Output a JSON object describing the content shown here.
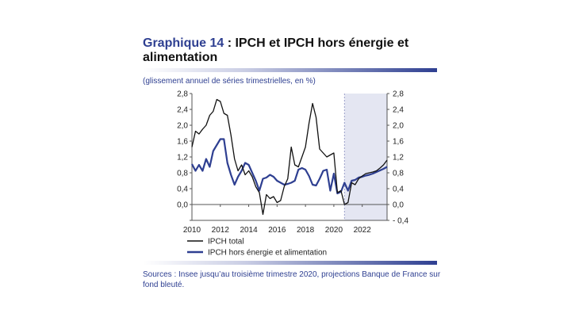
{
  "title": {
    "lead": "Graphique 14",
    "rest": " : IPCH et IPCH hors énergie et alimentation"
  },
  "subtitle": "(glissement annuel de séries trimestrielles, en %)",
  "sources": "Sources : Insee jusqu’au troisième trimestre 2020, projections Banque de France sur fond bleuté.",
  "colors": {
    "accent": "#2e3f91",
    "projection_band": "#e4e6f2",
    "total_line": "#111111"
  },
  "chart_data": {
    "type": "line",
    "xlim": [
      2010.0,
      2023.75
    ],
    "ylim": [
      -0.4,
      2.8
    ],
    "y_ticks": [
      -0.4,
      0.0,
      0.4,
      0.8,
      1.2,
      1.6,
      2.0,
      2.4,
      2.8
    ],
    "y_tick_labels": [
      "- 0,4",
      "0,0",
      "0,4",
      "0,8",
      "1,2",
      "1,6",
      "2,0",
      "2,4",
      "2,8"
    ],
    "y_tick_labels_left": [
      "",
      "0,0",
      "0,4",
      "0,8",
      "1,2",
      "1,6",
      "2,0",
      "2,4",
      "2,8"
    ],
    "x_ticks": [
      2010,
      2012,
      2014,
      2016,
      2018,
      2020,
      2022
    ],
    "x_tick_labels": [
      "2010",
      "2012",
      "2014",
      "2016",
      "2018",
      "2020",
      "2022"
    ],
    "projection_start": 2020.75,
    "legend_placement": "bottom-left",
    "series": [
      {
        "name": "IPCH total",
        "color": "#111111",
        "x": [
          2010.0,
          2010.25,
          2010.5,
          2010.75,
          2011.0,
          2011.25,
          2011.5,
          2011.75,
          2012.0,
          2012.25,
          2012.5,
          2012.75,
          2013.0,
          2013.25,
          2013.5,
          2013.75,
          2014.0,
          2014.25,
          2014.5,
          2014.75,
          2015.0,
          2015.25,
          2015.5,
          2015.75,
          2016.0,
          2016.25,
          2016.5,
          2016.75,
          2017.0,
          2017.25,
          2017.5,
          2017.75,
          2018.0,
          2018.25,
          2018.5,
          2018.75,
          2019.0,
          2019.25,
          2019.5,
          2019.75,
          2020.0,
          2020.25,
          2020.5,
          2020.75,
          2021.0,
          2021.25,
          2021.5,
          2021.75,
          2022.0,
          2022.25,
          2022.5,
          2022.75,
          2023.0,
          2023.25,
          2023.5,
          2023.75
        ],
        "values": [
          1.45,
          1.85,
          1.78,
          1.9,
          2.0,
          2.25,
          2.35,
          2.65,
          2.6,
          2.3,
          2.25,
          1.75,
          1.15,
          0.85,
          1.0,
          0.75,
          0.85,
          0.7,
          0.45,
          0.3,
          -0.25,
          0.25,
          0.15,
          0.2,
          0.05,
          0.1,
          0.45,
          0.65,
          1.45,
          1.0,
          0.95,
          1.2,
          1.45,
          2.05,
          2.55,
          2.2,
          1.4,
          1.3,
          1.2,
          1.25,
          1.3,
          0.3,
          0.35,
          0.0,
          0.05,
          0.55,
          0.5,
          0.65,
          0.72,
          0.78,
          0.8,
          0.82,
          0.85,
          0.92,
          1.0,
          1.12
        ]
      },
      {
        "name": "IPCH hors énergie et alimentation",
        "color": "#2e3f91",
        "x": [
          2010.0,
          2010.25,
          2010.5,
          2010.75,
          2011.0,
          2011.25,
          2011.5,
          2011.75,
          2012.0,
          2012.25,
          2012.5,
          2012.75,
          2013.0,
          2013.25,
          2013.5,
          2013.75,
          2014.0,
          2014.25,
          2014.5,
          2014.75,
          2015.0,
          2015.25,
          2015.5,
          2015.75,
          2016.0,
          2016.25,
          2016.5,
          2016.75,
          2017.0,
          2017.25,
          2017.5,
          2017.75,
          2018.0,
          2018.25,
          2018.5,
          2018.75,
          2019.0,
          2019.25,
          2019.5,
          2019.75,
          2020.0,
          2020.25,
          2020.5,
          2020.75,
          2021.0,
          2021.25,
          2021.5,
          2021.75,
          2022.0,
          2022.25,
          2022.5,
          2022.75,
          2023.0,
          2023.25,
          2023.5,
          2023.75
        ],
        "values": [
          1.02,
          0.85,
          1.0,
          0.85,
          1.15,
          0.95,
          1.35,
          1.5,
          1.65,
          1.65,
          1.05,
          0.75,
          0.5,
          0.7,
          0.85,
          1.05,
          1.0,
          0.8,
          0.6,
          0.35,
          0.65,
          0.68,
          0.75,
          0.7,
          0.6,
          0.55,
          0.5,
          0.52,
          0.55,
          0.6,
          0.88,
          0.92,
          0.88,
          0.72,
          0.5,
          0.48,
          0.65,
          0.85,
          0.88,
          0.35,
          0.78,
          0.28,
          0.32,
          0.55,
          0.35,
          0.6,
          0.62,
          0.68,
          0.7,
          0.73,
          0.75,
          0.78,
          0.82,
          0.86,
          0.9,
          0.95
        ]
      }
    ]
  }
}
